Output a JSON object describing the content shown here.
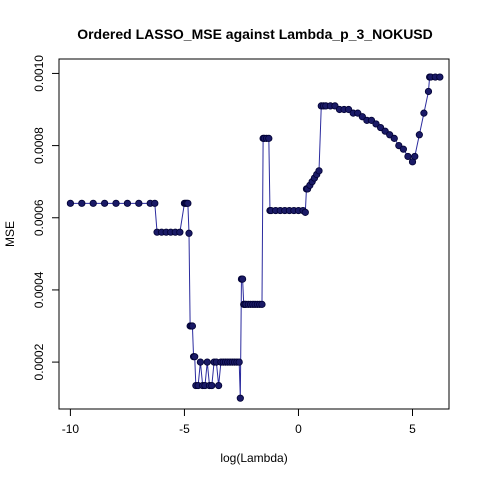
{
  "chart_data": {
    "type": "line",
    "title": "Ordered LASSO_MSE against Lambda_p_3_NOKUSD",
    "xlabel": "log(Lambda)",
    "ylabel": "MSE",
    "xlim": [
      -10.5,
      6.6
    ],
    "ylim": [
      7e-05,
      0.00104
    ],
    "x_ticks": [
      -10,
      -5,
      0,
      5
    ],
    "x_tick_labels": [
      "-10",
      "-5",
      "0",
      "5"
    ],
    "y_ticks": [
      0.0002,
      0.0004,
      0.0006,
      0.0008,
      0.001
    ],
    "y_tick_labels": [
      "0.0002",
      "0.0004",
      "0.0006",
      "0.0008",
      "0.0010"
    ],
    "grid": false,
    "legend": "none",
    "line_color": "#2b2b9e",
    "point_color": "#1a1a66",
    "series": [
      {
        "x": [
          -10.0,
          -9.5,
          -9.0,
          -8.5,
          -8.0,
          -7.5,
          -7.0,
          -6.5,
          -6.3,
          -6.2,
          -6.0,
          -5.8,
          -5.6,
          -5.4,
          -5.2,
          -5.0,
          -4.95,
          -4.9,
          -4.85,
          -4.8,
          -4.75,
          -4.7,
          -4.65,
          -4.6,
          -4.55,
          -4.5,
          -4.4,
          -4.3,
          -4.2,
          -4.1,
          -4.0,
          -3.9,
          -3.8,
          -3.7,
          -3.6,
          -3.5,
          -3.4,
          -3.3,
          -3.2,
          -3.1,
          -3.0,
          -2.9,
          -2.8,
          -2.7,
          -2.6,
          -2.55,
          -2.5,
          -2.45,
          -2.4,
          -2.35,
          -2.3,
          -2.2,
          -2.1,
          -2.0,
          -1.9,
          -1.8,
          -1.7,
          -1.6,
          -1.55,
          -1.5,
          -1.4,
          -1.3,
          -1.25,
          -1.2,
          -1.0,
          -0.8,
          -0.6,
          -0.4,
          -0.2,
          0.0,
          0.2,
          0.3,
          0.35,
          0.4,
          0.5,
          0.6,
          0.7,
          0.8,
          0.9,
          1.0,
          1.1,
          1.2,
          1.4,
          1.6,
          1.8,
          2.0,
          2.2,
          2.4,
          2.6,
          2.8,
          3.0,
          3.2,
          3.4,
          3.6,
          3.8,
          4.0,
          4.2,
          4.4,
          4.6,
          4.8,
          5.0,
          5.1,
          5.3,
          5.5,
          5.7,
          5.75,
          5.8,
          6.0,
          6.2
        ],
        "values": [
          0.00064,
          0.00064,
          0.00064,
          0.00064,
          0.00064,
          0.00064,
          0.00064,
          0.00064,
          0.00064,
          0.00056,
          0.00056,
          0.00056,
          0.00056,
          0.00056,
          0.00056,
          0.00064,
          0.00064,
          0.00064,
          0.00064,
          0.000557,
          0.0003,
          0.0003,
          0.0003,
          0.000215,
          0.000215,
          0.000135,
          0.000135,
          0.0002,
          0.000135,
          0.000135,
          0.0002,
          0.000135,
          0.000135,
          0.0002,
          0.0002,
          0.000135,
          0.0002,
          0.0002,
          0.0002,
          0.0002,
          0.0002,
          0.0002,
          0.0002,
          0.0002,
          0.0002,
          0.0001,
          0.00043,
          0.00043,
          0.00036,
          0.00036,
          0.00036,
          0.00036,
          0.00036,
          0.00036,
          0.00036,
          0.00036,
          0.00036,
          0.00036,
          0.00082,
          0.00082,
          0.00082,
          0.00082,
          0.00062,
          0.00062,
          0.00062,
          0.00062,
          0.00062,
          0.00062,
          0.00062,
          0.00062,
          0.00062,
          0.000615,
          0.00068,
          0.00068,
          0.00069,
          0.0007,
          0.00071,
          0.00072,
          0.00073,
          0.00091,
          0.00091,
          0.00091,
          0.00091,
          0.00091,
          0.0009,
          0.0009,
          0.0009,
          0.00089,
          0.00089,
          0.00088,
          0.00087,
          0.00087,
          0.00086,
          0.00085,
          0.00084,
          0.00083,
          0.00082,
          0.0008,
          0.00079,
          0.00077,
          0.000755,
          0.00077,
          0.00083,
          0.00089,
          0.00095,
          0.00099,
          0.00099,
          0.00099,
          0.00099
        ]
      }
    ]
  }
}
